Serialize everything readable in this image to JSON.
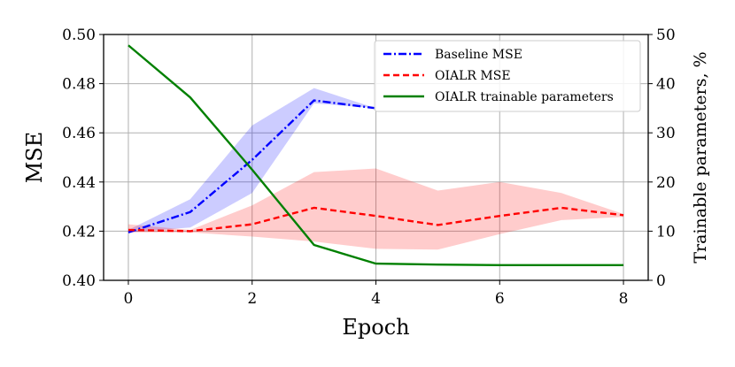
{
  "chart_data": {
    "type": "line",
    "xlabel": "Epoch",
    "ylabel": "MSE",
    "y2label": "Trainable parameters, %",
    "xlim": [
      -0.4,
      8.4
    ],
    "ylim": [
      0.4,
      0.5
    ],
    "y2lim": [
      0,
      50
    ],
    "xticks": [
      "0",
      "2",
      "4",
      "6",
      "8"
    ],
    "yticks": [
      "0.40",
      "0.42",
      "0.44",
      "0.46",
      "0.48",
      "0.50"
    ],
    "y2ticks": [
      "0",
      "10",
      "20",
      "30",
      "40",
      "50"
    ],
    "grid": true,
    "legend_position": "top-right",
    "series": [
      {
        "name": "Baseline MSE",
        "axis": "left",
        "color": "#0000ff",
        "style": "dashdot",
        "x": [
          0,
          1,
          2,
          3,
          4
        ],
        "y": [
          0.4195,
          0.4278,
          0.449,
          0.4732,
          0.47
        ],
        "band_lower": [
          0.4195,
          0.4215,
          0.4355,
          0.472,
          0.47
        ],
        "band_upper": [
          0.4205,
          0.433,
          0.463,
          0.4782,
          0.47
        ]
      },
      {
        "name": "OIALR MSE",
        "axis": "left",
        "color": "#ff0000",
        "style": "dashed",
        "x": [
          0,
          1,
          2,
          3,
          4,
          5,
          6,
          7,
          8
        ],
        "y": [
          0.4205,
          0.42,
          0.4228,
          0.4295,
          0.4262,
          0.4225,
          0.4262,
          0.4295,
          0.4265
        ],
        "band_lower": [
          0.4195,
          0.4195,
          0.4178,
          0.4158,
          0.4128,
          0.4125,
          0.4188,
          0.4245,
          0.4258
        ],
        "band_upper": [
          0.4228,
          0.4205,
          0.4305,
          0.444,
          0.4455,
          0.4365,
          0.44,
          0.4355,
          0.427
        ]
      },
      {
        "name": "OIALR trainable parameters",
        "axis": "right",
        "color": "#008000",
        "style": "solid",
        "x": [
          0,
          1,
          2,
          3,
          4,
          5,
          6,
          7,
          8
        ],
        "y": [
          47.8,
          37.2,
          22.5,
          7.2,
          3.4,
          3.2,
          3.1,
          3.1,
          3.1
        ]
      }
    ]
  }
}
